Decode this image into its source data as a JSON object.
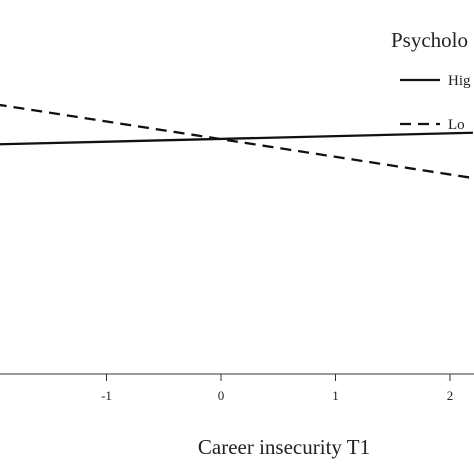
{
  "chart_data": {
    "type": "line",
    "title": "",
    "xlabel": "Career insecurity T1",
    "ylabel": "",
    "x_ticks": [
      "-1",
      "0",
      "1",
      "2"
    ],
    "xlim": [
      -2.9,
      2.2
    ],
    "ylim": [
      0,
      1
    ],
    "grid": false,
    "legend": {
      "title": "Psycholo",
      "placement": "top-right"
    },
    "series": [
      {
        "name": "Hig",
        "style": "solid",
        "color": "#111111",
        "x": [
          -2.9,
          2.2
        ],
        "y": [
          0.607,
          0.645
        ]
      },
      {
        "name": "Lo",
        "style": "dashed",
        "color": "#111111",
        "x": [
          -2.9,
          2.2
        ],
        "y": [
          0.765,
          0.524
        ]
      }
    ]
  }
}
